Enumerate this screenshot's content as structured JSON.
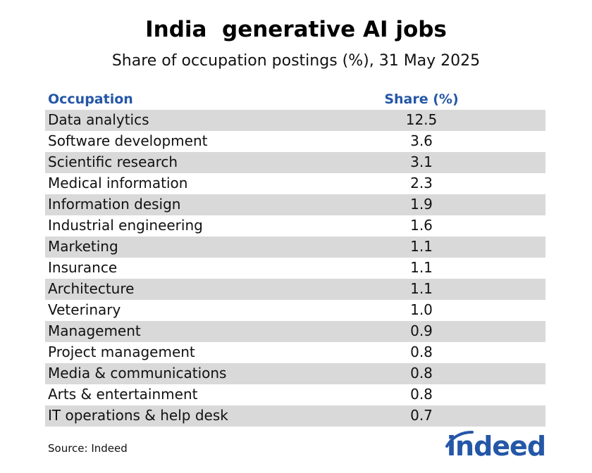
{
  "header": {
    "title": "India  generative AI jobs",
    "subtitle": "Share of occupation postings (%), 31 May 2025"
  },
  "table": {
    "col_occupation": "Occupation",
    "col_share": "Share (%)"
  },
  "chart_data": {
    "type": "table",
    "title": "India  generative AI jobs",
    "subtitle": "Share of occupation postings (%), 31 May 2025",
    "columns": [
      "Occupation",
      "Share (%)"
    ],
    "rows": [
      {
        "occupation": "Data analytics",
        "share": "12.5"
      },
      {
        "occupation": "Software development",
        "share": "3.6"
      },
      {
        "occupation": "Scientific research",
        "share": "3.1"
      },
      {
        "occupation": "Medical information",
        "share": "2.3"
      },
      {
        "occupation": "Information design",
        "share": "1.9"
      },
      {
        "occupation": "Industrial engineering",
        "share": "1.6"
      },
      {
        "occupation": "Marketing",
        "share": "1.1"
      },
      {
        "occupation": "Insurance",
        "share": "1.1"
      },
      {
        "occupation": "Architecture",
        "share": "1.1"
      },
      {
        "occupation": "Veterinary",
        "share": "1.0"
      },
      {
        "occupation": "Management",
        "share": "0.9"
      },
      {
        "occupation": "Project management",
        "share": "0.8"
      },
      {
        "occupation": "Media & communications",
        "share": "0.8"
      },
      {
        "occupation": "Arts & entertainment",
        "share": "0.8"
      },
      {
        "occupation": "IT operations & help desk",
        "share": "0.7"
      }
    ]
  },
  "footer": {
    "source": "Source: Indeed",
    "logo_text": "indeed"
  },
  "colors": {
    "accent": "#2557a7",
    "row_stripe": "#d9d9d9"
  }
}
